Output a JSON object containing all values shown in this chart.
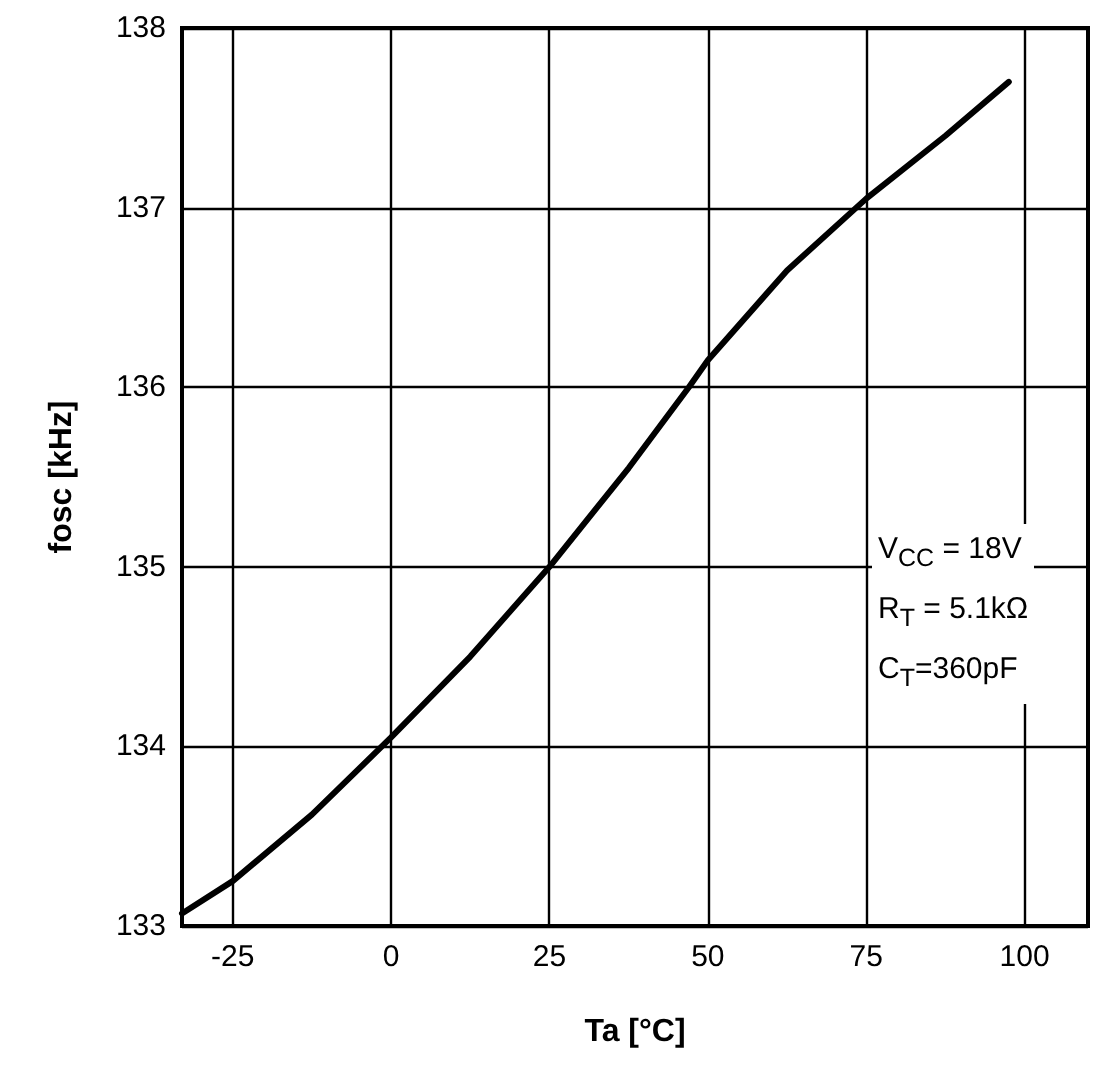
{
  "chart_data": {
    "type": "line",
    "xlabel": "Ta [°C]",
    "ylabel": "fosc [kHz]",
    "x": [
      -33,
      -25,
      -12.5,
      0,
      12.5,
      25,
      37.5,
      47,
      50,
      62.5,
      75,
      87.5,
      97.5
    ],
    "series": [
      {
        "color": "#000000",
        "values": [
          133.07,
          133.25,
          133.62,
          134.05,
          134.5,
          135.0,
          135.55,
          136.0,
          136.15,
          136.65,
          137.05,
          137.4,
          137.7
        ]
      }
    ],
    "xlim": [
      -33,
      110
    ],
    "xticks": [
      -25,
      0,
      25,
      50,
      75,
      100
    ],
    "ylim": [
      133,
      138
    ],
    "yticks": [
      133,
      134,
      135,
      136,
      137,
      138
    ],
    "grid": true,
    "marker": "none",
    "line_style": "solid",
    "annotations": [
      "V$_{CC}$ = 18V",
      "R$_{T}$ = 5.1kΩ",
      "C$_{T}$=360pF"
    ]
  }
}
